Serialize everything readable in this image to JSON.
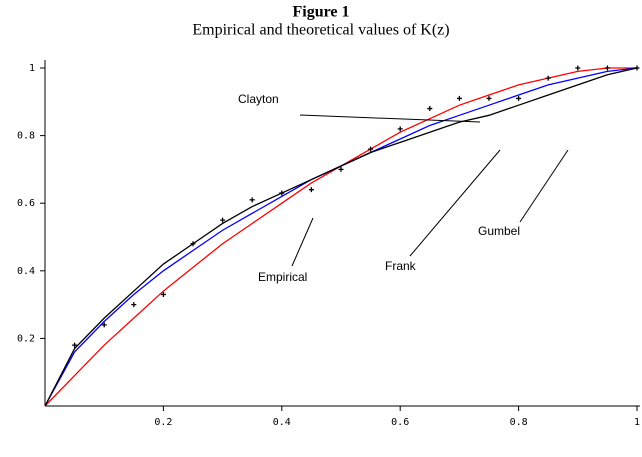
{
  "chart_data": {
    "type": "line",
    "title": "Figure 1",
    "subtitle": "Empirical and theoretical values of K(z)",
    "x": [
      0,
      0.05,
      0.1,
      0.15,
      0.2,
      0.25,
      0.3,
      0.35,
      0.4,
      0.45,
      0.5,
      0.55,
      0.6,
      0.65,
      0.7,
      0.75,
      0.8,
      0.85,
      0.9,
      0.95,
      1
    ],
    "series": [
      {
        "name": "Clayton",
        "color": "#ff0000",
        "values": [
          0,
          0.09,
          0.18,
          0.26,
          0.34,
          0.41,
          0.48,
          0.54,
          0.6,
          0.66,
          0.71,
          0.76,
          0.81,
          0.85,
          0.89,
          0.92,
          0.95,
          0.97,
          0.99,
          1.0,
          1
        ]
      },
      {
        "name": "Frank",
        "color": "#0000ff",
        "values": [
          0,
          0.16,
          0.25,
          0.33,
          0.4,
          0.46,
          0.52,
          0.57,
          0.62,
          0.67,
          0.71,
          0.75,
          0.79,
          0.83,
          0.86,
          0.89,
          0.92,
          0.95,
          0.97,
          0.99,
          1
        ]
      },
      {
        "name": "Gumbel",
        "color": "#000000",
        "values": [
          0,
          0.17,
          0.26,
          0.34,
          0.42,
          0.48,
          0.54,
          0.59,
          0.63,
          0.67,
          0.71,
          0.75,
          0.78,
          0.81,
          0.84,
          0.86,
          0.89,
          0.92,
          0.95,
          0.98,
          1
        ]
      },
      {
        "name": "Empirical",
        "color": "#000000",
        "marker": "plus",
        "values": [
          null,
          0.18,
          0.24,
          0.3,
          0.33,
          0.48,
          0.55,
          0.61,
          0.63,
          0.64,
          0.7,
          0.76,
          0.82,
          0.88,
          0.91,
          0.91,
          0.91,
          0.97,
          1.0,
          1.0,
          1.0
        ]
      }
    ],
    "xlim": [
      0,
      1
    ],
    "ylim": [
      0,
      1
    ],
    "xticks": [
      0.2,
      0.4,
      0.6,
      0.8,
      1
    ],
    "yticks": [
      0.2,
      0.4,
      0.6,
      0.8,
      1
    ]
  }
}
